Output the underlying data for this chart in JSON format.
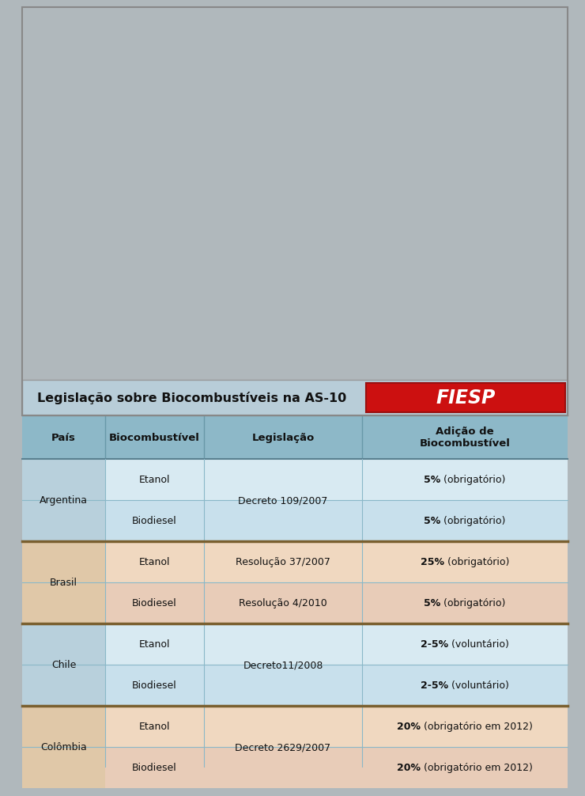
{
  "title": "Legislação sobre Biocombustíveis na AS-10",
  "title_bg": "#b8cdd8",
  "header_bg": "#8db8c8",
  "header_text_color": "#ffffff",
  "header_cols": [
    "País",
    "Biocombustível",
    "Legislação",
    "Adição de\nBiocombustível"
  ],
  "separator_color": "#7a6030",
  "thin_line_color": "#8ab0c0",
  "countries": [
    {
      "name": "Argentina",
      "col0_bg": "#b8d0dc",
      "rows": [
        {
          "biofuel": "Etanol",
          "legislation": "Decreto 109/2007",
          "legis_span": true,
          "addition_bold": "5%",
          "addition_regular": " (obrigatório)",
          "row_bg": "#d8eaf2",
          "col0_bg": "#b8d0dc"
        },
        {
          "biofuel": "Biodiesel",
          "legislation": "",
          "legis_span": false,
          "addition_bold": "5%",
          "addition_regular": " (obrigatório)",
          "row_bg": "#c8e0ec",
          "col0_bg": "#b8d0dc"
        }
      ]
    },
    {
      "name": "Brasil",
      "col0_bg": "#e0c8a8",
      "rows": [
        {
          "biofuel": "Etanol",
          "legislation": "Resolução 37/2007",
          "legis_span": false,
          "addition_bold": "25%",
          "addition_regular": " (obrigatório)",
          "row_bg": "#f0d8c0",
          "col0_bg": "#e0c8a8"
        },
        {
          "biofuel": "Biodiesel",
          "legislation": "Resolução 4/2010",
          "legis_span": false,
          "addition_bold": "5%",
          "addition_regular": " (obrigatório)",
          "row_bg": "#e8ccb8",
          "col0_bg": "#e0c8a8"
        }
      ]
    },
    {
      "name": "Chile",
      "col0_bg": "#b8d0dc",
      "rows": [
        {
          "biofuel": "Etanol",
          "legislation": "Decreto11/2008",
          "legis_span": true,
          "addition_bold": "2-5%",
          "addition_regular": " (voluntário)",
          "row_bg": "#d8eaf2",
          "col0_bg": "#b8d0dc"
        },
        {
          "biofuel": "Biodiesel",
          "legislation": "",
          "legis_span": false,
          "addition_bold": "2-5%",
          "addition_regular": " (voluntário)",
          "row_bg": "#c8e0ec",
          "col0_bg": "#b8d0dc"
        }
      ]
    },
    {
      "name": "Colômbia",
      "col0_bg": "#e0c8a8",
      "rows": [
        {
          "biofuel": "Etanol",
          "legislation": "Decreto 2629/2007",
          "legis_span": true,
          "addition_bold": "20%",
          "addition_regular": " (obrigatório em 2012)",
          "row_bg": "#f0d8c0",
          "col0_bg": "#e0c8a8"
        },
        {
          "biofuel": "Biodiesel",
          "legislation": "",
          "legis_span": false,
          "addition_bold": "20%",
          "addition_regular": " (obrigatório em 2012)",
          "row_bg": "#e8ccb8",
          "col0_bg": "#e0c8a8"
        }
      ]
    }
  ],
  "fiesp_bg": "#cc1010",
  "fiesp_text": "FIESP",
  "outer_bg": "#b0b8bc"
}
